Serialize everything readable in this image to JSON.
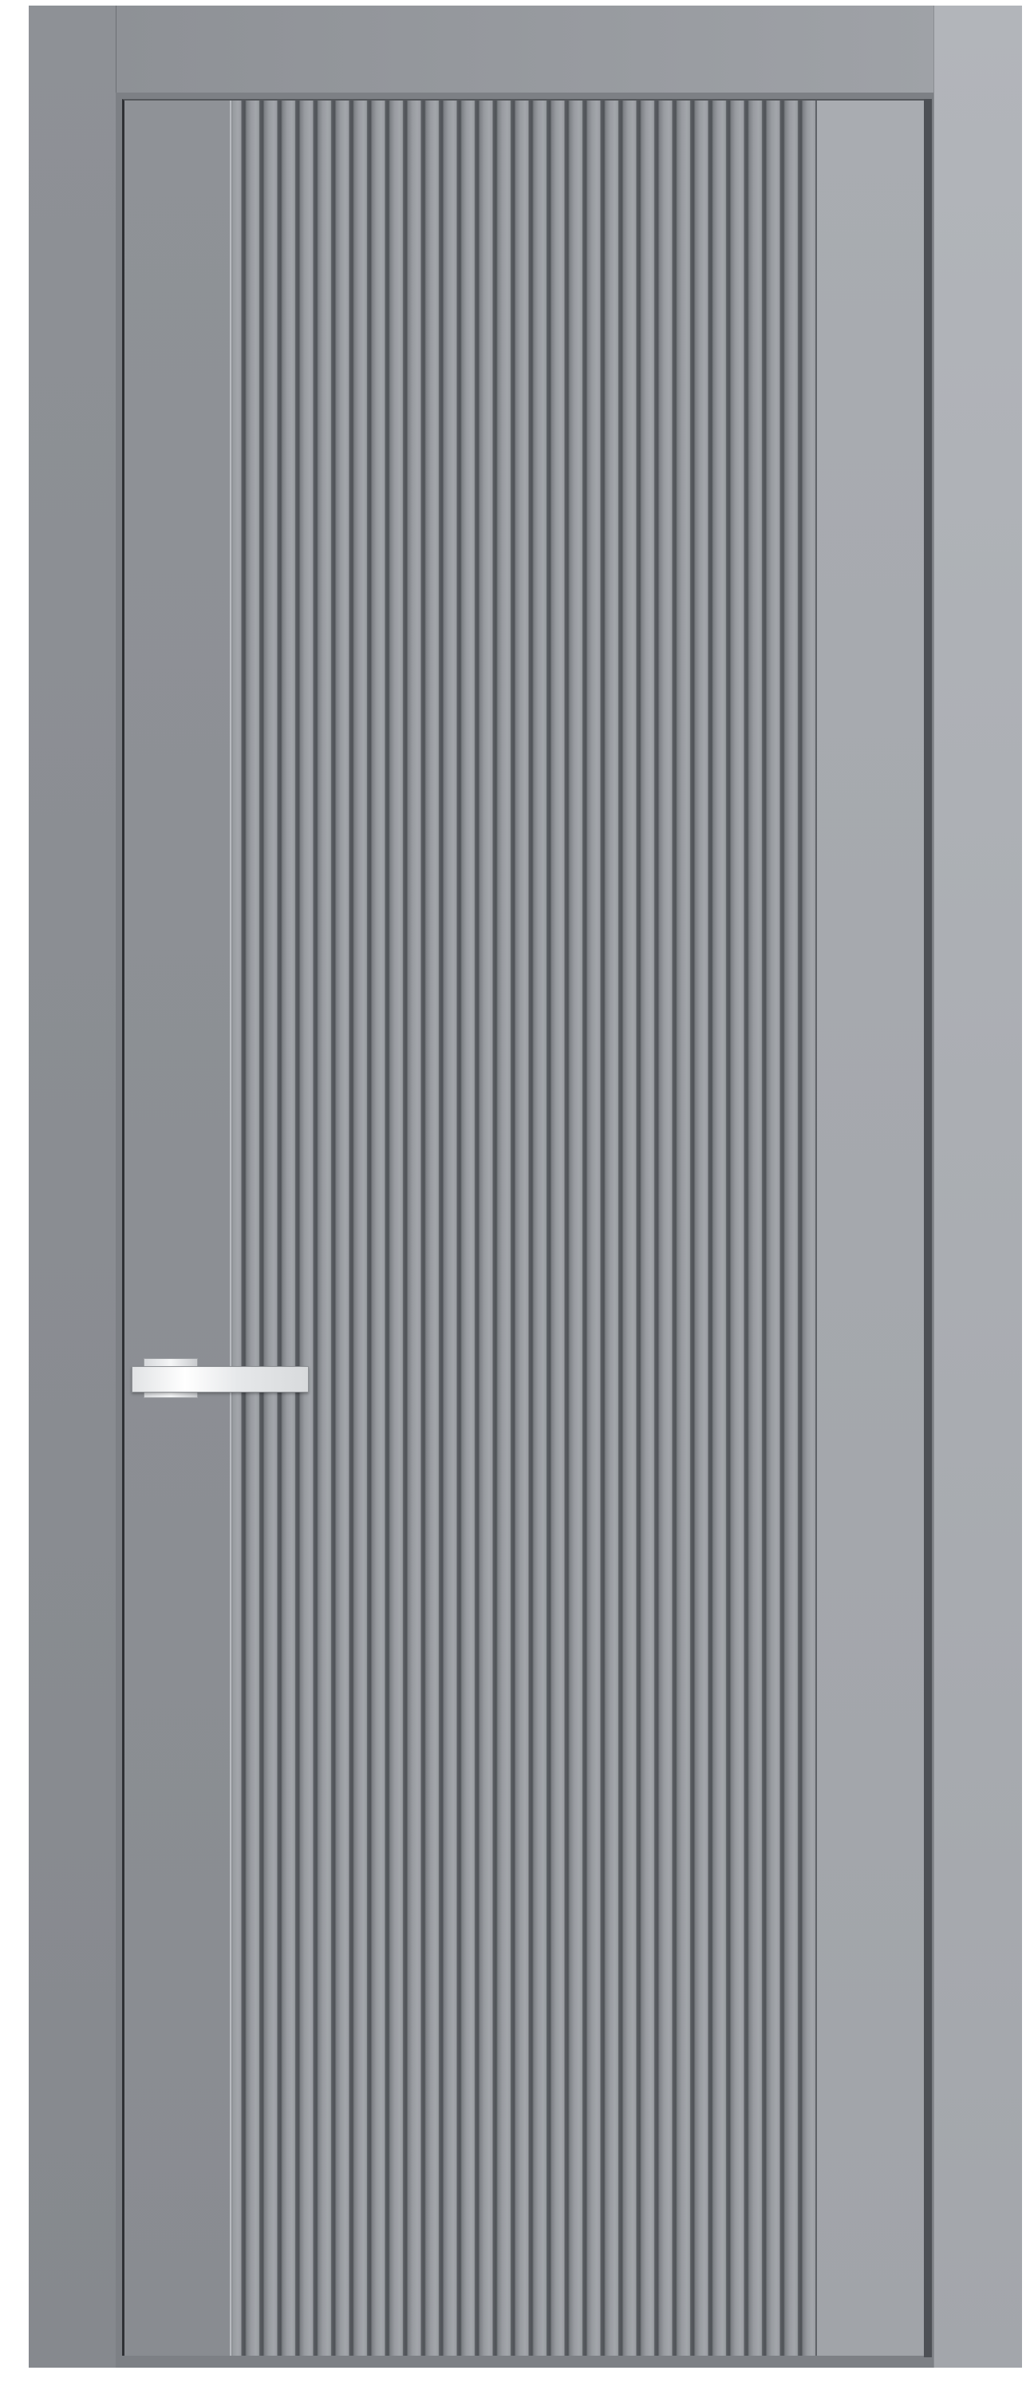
{
  "product": {
    "type": "interior door with fluted center panel",
    "colors": {
      "frame": "#8e9196",
      "leaf": "#9a9da2",
      "flute_groove": "#4f5257",
      "handle": "#e6e8ea"
    },
    "handle": {
      "type": "lever",
      "finish": "chrome"
    }
  }
}
